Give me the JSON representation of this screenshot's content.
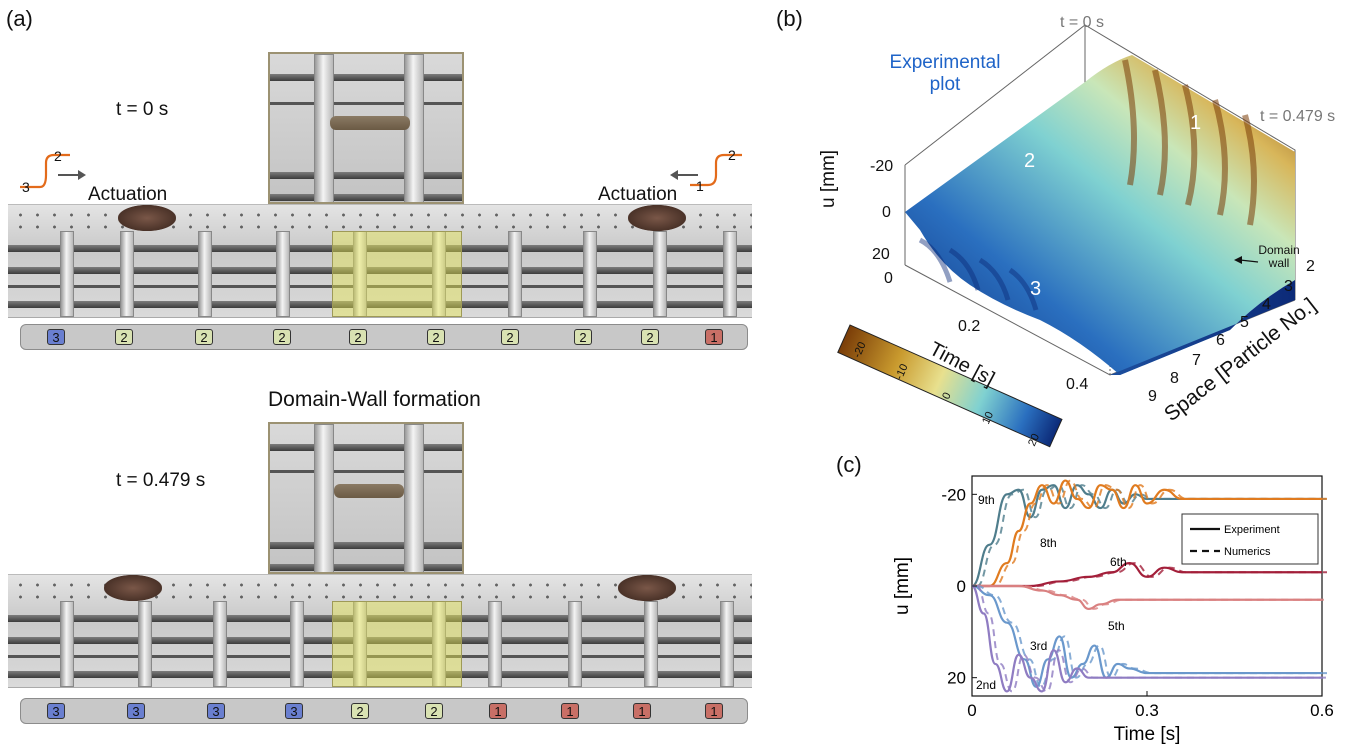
{
  "panel_a": {
    "label": "(a)",
    "top": {
      "time": "t = 0 s",
      "actuation_left": {
        "label": "Actuation",
        "from": "3",
        "to": "2"
      },
      "actuation_right": {
        "label": "Actuation",
        "from": "2",
        "to": "1"
      },
      "states": [
        "3",
        "2",
        "2",
        "2",
        "2",
        "2",
        "2",
        "2",
        "2",
        "1"
      ]
    },
    "bottom": {
      "title": "Domain-Wall formation",
      "time": "t = 0.479 s",
      "states": [
        "3",
        "3",
        "3",
        "3",
        "2",
        "2",
        "1",
        "1",
        "1",
        "1"
      ]
    }
  },
  "panel_b": {
    "label": "(b)",
    "title": "Experimental plot",
    "title_color": "#1f64c8",
    "t0_label": "t = 0 s",
    "tend_label": "t = 0.479 s",
    "region_labels": [
      "1",
      "2",
      "3"
    ],
    "domain_wall": "Domain wall",
    "zlabel": "u [mm]",
    "zticks": [
      "-20",
      "0",
      "20"
    ],
    "xlabel": "Time [s]",
    "xticks": [
      "0",
      "0.2",
      "0.4"
    ],
    "ylabel": "Space [Particle No.]",
    "yticks": [
      "2",
      "3",
      "4",
      "5",
      "6",
      "7",
      "8",
      "9"
    ],
    "colorbar_ticks": [
      "-20",
      "-10",
      "0",
      "10",
      "20"
    ],
    "colormap": [
      "#7a3d08",
      "#c99a2e",
      "#e8e08e",
      "#7fd1d1",
      "#2a6fbf",
      "#0c2a78"
    ]
  },
  "panel_c": {
    "label": "(c)",
    "chart_data": {
      "type": "line",
      "xlabel": "Time [s]",
      "ylabel": "u [mm]",
      "xlim": [
        0,
        0.6
      ],
      "ylim": [
        24,
        -24
      ],
      "xticks": [
        "0",
        "0.3",
        "0.6"
      ],
      "yticks": [
        "-20",
        "0",
        "20"
      ],
      "legend": {
        "placement": "top-right",
        "entries": [
          "Experiment",
          "Numerics"
        ]
      },
      "annotations": [
        "9th",
        "8th",
        "6th",
        "5th",
        "3rd",
        "2nd"
      ],
      "series": [
        {
          "name": "9th",
          "color": "#4f7d8c",
          "x": [
            0,
            0.03,
            0.06,
            0.08,
            0.1,
            0.12,
            0.14,
            0.16,
            0.18,
            0.2,
            0.22,
            0.24,
            0.26,
            0.28,
            0.3,
            0.35,
            0.4,
            0.5,
            0.6
          ],
          "y": [
            0,
            -9,
            -20,
            -21,
            -15,
            -21,
            -22,
            -17,
            -22,
            -20,
            -17,
            -21,
            -18,
            -20,
            -19,
            -19,
            -19,
            -19,
            -19
          ]
        },
        {
          "name": "8th",
          "color": "#e07b1f",
          "x": [
            0,
            0.03,
            0.06,
            0.08,
            0.1,
            0.12,
            0.14,
            0.16,
            0.18,
            0.2,
            0.22,
            0.24,
            0.26,
            0.28,
            0.3,
            0.33,
            0.36,
            0.4,
            0.5,
            0.6
          ],
          "y": [
            0,
            0,
            -5,
            -12,
            -18,
            -22,
            -18,
            -23,
            -19,
            -17,
            -22,
            -21,
            -17,
            -22,
            -18,
            -21,
            -19,
            -19,
            -19,
            -19
          ]
        },
        {
          "name": "6th",
          "color": "#a31f3a",
          "x": [
            0,
            0.1,
            0.15,
            0.2,
            0.24,
            0.27,
            0.3,
            0.33,
            0.36,
            0.4,
            0.5,
            0.6
          ],
          "y": [
            0,
            0,
            -1,
            -2,
            -3,
            -5,
            -2,
            -4,
            -3,
            -3,
            -3,
            -3
          ]
        },
        {
          "name": "5th",
          "color": "#d98080",
          "x": [
            0,
            0.08,
            0.12,
            0.15,
            0.18,
            0.2,
            0.22,
            0.25,
            0.3,
            0.4,
            0.5,
            0.6
          ],
          "y": [
            0,
            0,
            1,
            2,
            3,
            5,
            4,
            3,
            3,
            3,
            3,
            3
          ]
        },
        {
          "name": "3rd",
          "color": "#6a98cc",
          "x": [
            0,
            0.03,
            0.06,
            0.09,
            0.11,
            0.13,
            0.15,
            0.17,
            0.19,
            0.21,
            0.23,
            0.25,
            0.27,
            0.3,
            0.35,
            0.4,
            0.5,
            0.6
          ],
          "y": [
            0,
            2,
            8,
            16,
            22,
            16,
            11,
            20,
            17,
            13,
            20,
            17,
            18,
            19,
            19,
            19,
            19,
            19
          ]
        },
        {
          "name": "2nd",
          "color": "#8f7cc2",
          "x": [
            0,
            0.02,
            0.04,
            0.06,
            0.08,
            0.1,
            0.12,
            0.14,
            0.16,
            0.18,
            0.2,
            0.24,
            0.3,
            0.4,
            0.5,
            0.6
          ],
          "y": [
            0,
            6,
            17,
            23,
            15,
            20,
            23,
            14,
            21,
            18,
            20,
            20,
            20,
            20,
            20,
            20
          ]
        }
      ]
    }
  }
}
